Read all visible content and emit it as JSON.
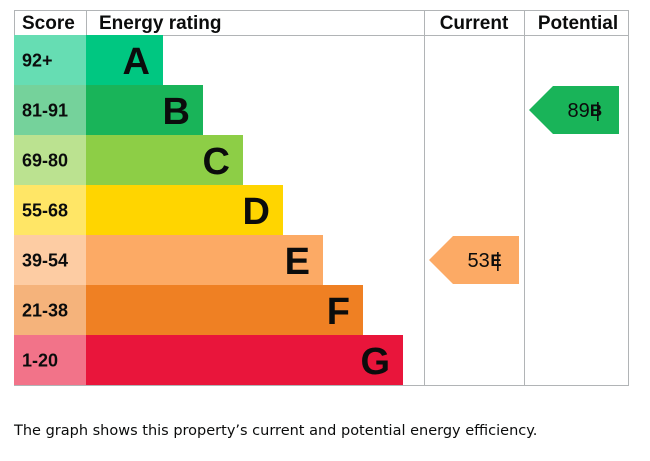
{
  "headers": {
    "score": "Score",
    "rating": "Energy rating",
    "current": "Current",
    "potential": "Potential"
  },
  "chart_data": {
    "type": "bar",
    "categories": [
      "A",
      "B",
      "C",
      "D",
      "E",
      "F",
      "G"
    ],
    "score_ranges": [
      "92+",
      "81-91",
      "69-80",
      "55-68",
      "39-54",
      "21-38",
      "1-20"
    ],
    "band_colors": [
      "#00c781",
      "#19b459",
      "#8dce46",
      "#ffd500",
      "#fcaa65",
      "#ef8023",
      "#e9153b"
    ],
    "score_colors": [
      "#66ddb3",
      "#75d29b",
      "#bbe290",
      "#ffe666",
      "#fdcca3",
      "#f5b37b",
      "#f27389"
    ],
    "current": {
      "value": 53,
      "band": "E",
      "color": "#fcaa65"
    },
    "potential": {
      "value": 89,
      "band": "B",
      "color": "#19b459"
    }
  },
  "caption": "The graph shows this property’s current and potential energy efficiency."
}
